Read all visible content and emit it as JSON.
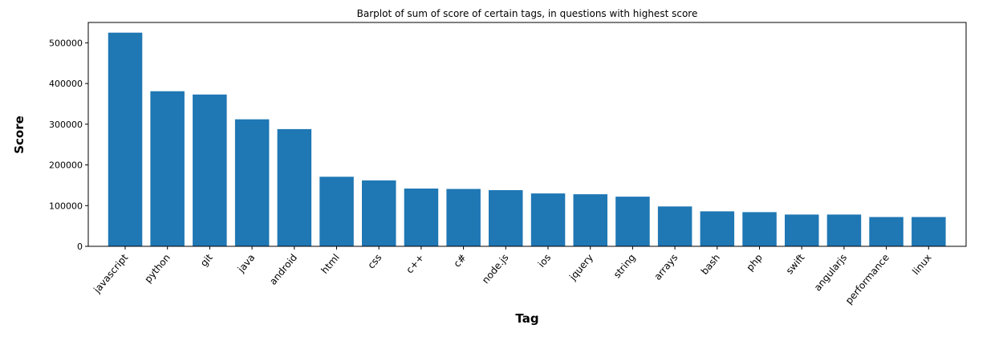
{
  "chart_data": {
    "type": "bar",
    "title": "Barplot of sum of score of certain tags, in questions with highest score",
    "xlabel": "Tag",
    "ylabel": "Score",
    "categories": [
      "javascript",
      "python",
      "git",
      "java",
      "android",
      "html",
      "css",
      "c++",
      "c#",
      "node.js",
      "ios",
      "jquery",
      "string",
      "arrays",
      "bash",
      "php",
      "swift",
      "angularjs",
      "performance",
      "linux"
    ],
    "values": [
      525000,
      381000,
      373000,
      312000,
      288000,
      171000,
      162000,
      142000,
      141000,
      138000,
      130000,
      128000,
      122000,
      98000,
      86000,
      84000,
      78000,
      78000,
      72000,
      72000
    ],
    "ylim": [
      0,
      550000
    ],
    "yticks": [
      0,
      100000,
      200000,
      300000,
      400000,
      500000
    ],
    "ytick_labels": [
      "0",
      "100000",
      "200000",
      "300000",
      "400000",
      "500000"
    ],
    "bar_color": "#1f77b4",
    "grid": false,
    "legend": "none"
  }
}
